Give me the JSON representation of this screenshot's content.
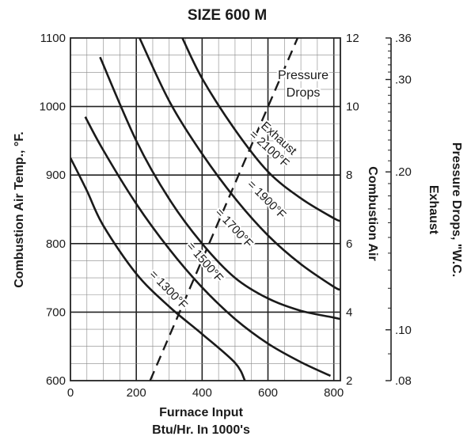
{
  "chart_data": {
    "type": "line",
    "title": "SIZE 600 M",
    "xlabel": "Furnace Input",
    "xlabel2": "Btu/Hr. In 1000's",
    "ylabel_left": "Combustion Air Temp., °F.",
    "ylabel_right_inner": "Combustion Air",
    "ylabel_right_outer_1": "Pressure Drops, \"W.C.",
    "ylabel_right_outer_2": "Exhaust",
    "xlim": [
      0,
      820
    ],
    "ylim": [
      600,
      1100
    ],
    "x_ticks": [
      "0",
      "200",
      "400",
      "600",
      "800"
    ],
    "y_ticks": [
      "600",
      "700",
      "800",
      "900",
      "1000",
      "1100"
    ],
    "right_ticks": [
      "2",
      "4",
      "6",
      "8",
      "10",
      "12"
    ],
    "outer_ticks": [
      {
        "label": ".08",
        "pressure": 0.08
      },
      {
        "label": ".10",
        "pressure": 0.1
      },
      {
        "label": ".20",
        "pressure": 0.2
      },
      {
        "label": ".30",
        "pressure": 0.3
      },
      {
        "label": ".36",
        "pressure": 0.36
      }
    ],
    "grid": true,
    "series": [
      {
        "name": "Exhaust = 2100°F",
        "label_lines": [
          "Exhaust",
          "= 2100°F"
        ],
        "points": [
          [
            340,
            1100
          ],
          [
            400,
            1041
          ],
          [
            500,
            966
          ],
          [
            600,
            905
          ],
          [
            700,
            866
          ],
          [
            800,
            837
          ],
          [
            820,
            833
          ]
        ]
      },
      {
        "name": "= 1900°F",
        "label_lines": [
          "= 1900°F"
        ],
        "points": [
          [
            210,
            1100
          ],
          [
            300,
            1008
          ],
          [
            400,
            931
          ],
          [
            500,
            866
          ],
          [
            600,
            812
          ],
          [
            700,
            770
          ],
          [
            800,
            737
          ],
          [
            820,
            733
          ]
        ]
      },
      {
        "name": "= 1700°F",
        "label_lines": [
          "= 1700°F"
        ],
        "points": [
          [
            90,
            1072
          ],
          [
            200,
            950
          ],
          [
            300,
            865
          ],
          [
            400,
            800
          ],
          [
            500,
            750
          ],
          [
            600,
            720
          ],
          [
            700,
            702
          ],
          [
            800,
            692
          ],
          [
            820,
            690
          ]
        ]
      },
      {
        "name": "= 1500°F",
        "label_lines": [
          "= 1500°F"
        ],
        "points": [
          [
            45,
            985
          ],
          [
            100,
            936
          ],
          [
            200,
            858
          ],
          [
            300,
            792
          ],
          [
            400,
            736
          ],
          [
            500,
            690
          ],
          [
            600,
            654
          ],
          [
            700,
            627
          ],
          [
            790,
            607
          ]
        ]
      },
      {
        "name": "= 1300°F",
        "label_lines": [
          "= 1300°F"
        ],
        "points": [
          [
            0,
            925
          ],
          [
            50,
            877
          ],
          [
            100,
            826
          ],
          [
            200,
            756
          ],
          [
            300,
            708
          ],
          [
            400,
            668
          ],
          [
            500,
            626
          ],
          [
            530,
            600
          ]
        ]
      }
    ],
    "pressure_drops": {
      "label_lines": [
        "Pressure",
        "Drops"
      ],
      "points": [
        [
          242,
          600
        ],
        [
          690,
          1100
        ]
      ]
    }
  }
}
